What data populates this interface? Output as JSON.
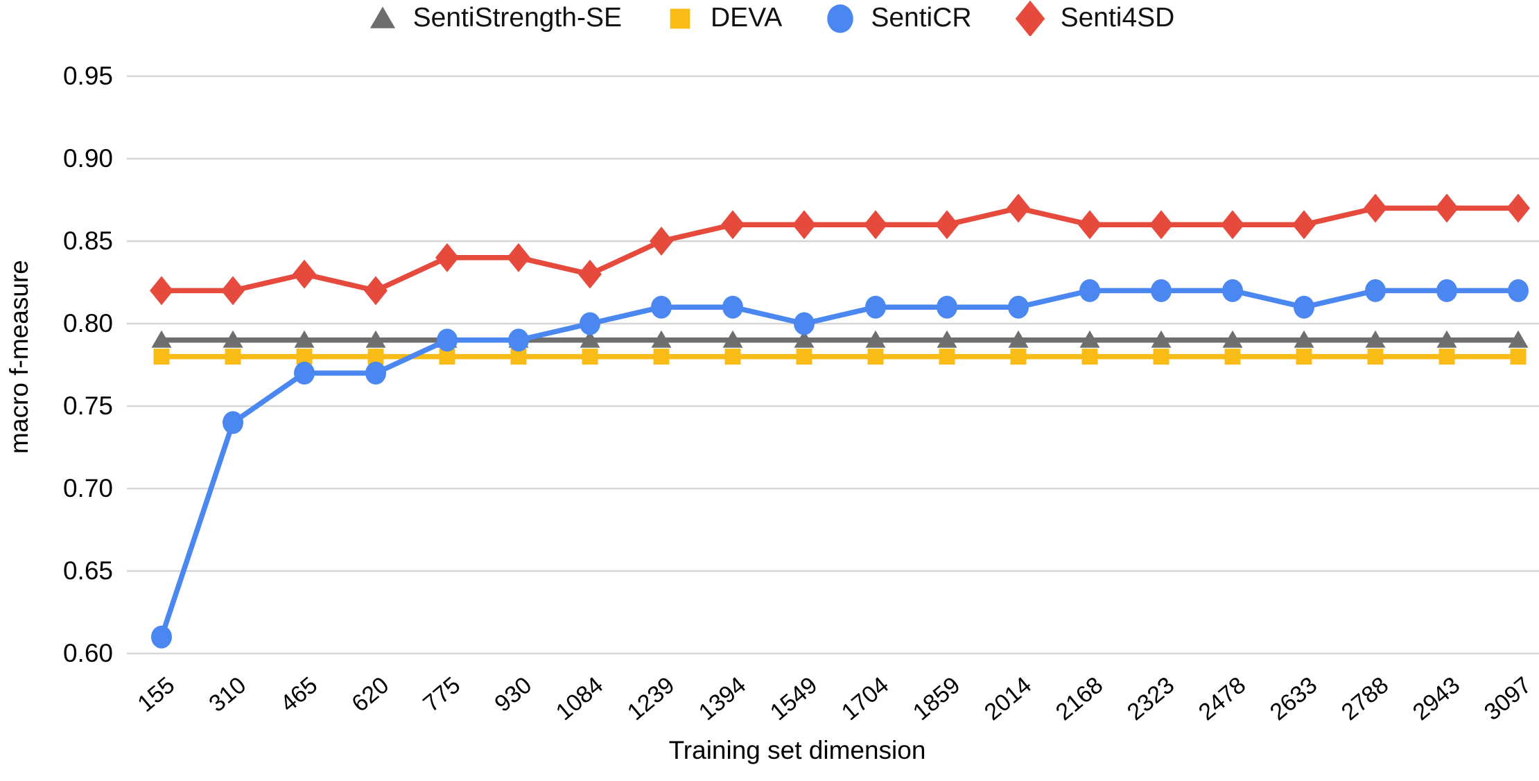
{
  "chart_data": {
    "type": "line",
    "title": "",
    "xlabel": "Training set dimension",
    "ylabel": "macro f-measure",
    "categories": [
      "155",
      "310",
      "465",
      "620",
      "775",
      "930",
      "1084",
      "1239",
      "1394",
      "1549",
      "1704",
      "1859",
      "2014",
      "2168",
      "2323",
      "2478",
      "2633",
      "2788",
      "2943",
      "3097"
    ],
    "yticks": [
      "0.60",
      "0.65",
      "0.70",
      "0.75",
      "0.80",
      "0.85",
      "0.90",
      "0.95"
    ],
    "ylim": [
      0.6,
      0.95
    ],
    "grid": "horizontal",
    "legend_position": "top",
    "series": [
      {
        "name": "SentiStrength-SE",
        "marker": "triangle",
        "color": "#6e6e6e",
        "values": [
          0.79,
          0.79,
          0.79,
          0.79,
          0.79,
          0.79,
          0.79,
          0.79,
          0.79,
          0.79,
          0.79,
          0.79,
          0.79,
          0.79,
          0.79,
          0.79,
          0.79,
          0.79,
          0.79,
          0.79
        ]
      },
      {
        "name": "DEVA",
        "marker": "square",
        "color": "#f9bb16",
        "values": [
          0.78,
          0.78,
          0.78,
          0.78,
          0.78,
          0.78,
          0.78,
          0.78,
          0.78,
          0.78,
          0.78,
          0.78,
          0.78,
          0.78,
          0.78,
          0.78,
          0.78,
          0.78,
          0.78,
          0.78
        ]
      },
      {
        "name": "SentiCR",
        "marker": "circle",
        "color": "#4a87f0",
        "values": [
          0.61,
          0.74,
          0.77,
          0.77,
          0.79,
          0.79,
          0.8,
          0.81,
          0.81,
          0.8,
          0.81,
          0.81,
          0.81,
          0.82,
          0.82,
          0.82,
          0.81,
          0.82,
          0.82,
          0.82
        ]
      },
      {
        "name": "Senti4SD",
        "marker": "diamond",
        "color": "#e64a3c",
        "values": [
          0.82,
          0.82,
          0.83,
          0.82,
          0.84,
          0.84,
          0.83,
          0.85,
          0.86,
          0.86,
          0.86,
          0.86,
          0.87,
          0.86,
          0.86,
          0.86,
          0.86,
          0.87,
          0.87,
          0.87
        ]
      }
    ]
  },
  "colors": {
    "gridline": "#d6d6d6",
    "axis_text": "#000000",
    "background": "#ffffff"
  }
}
